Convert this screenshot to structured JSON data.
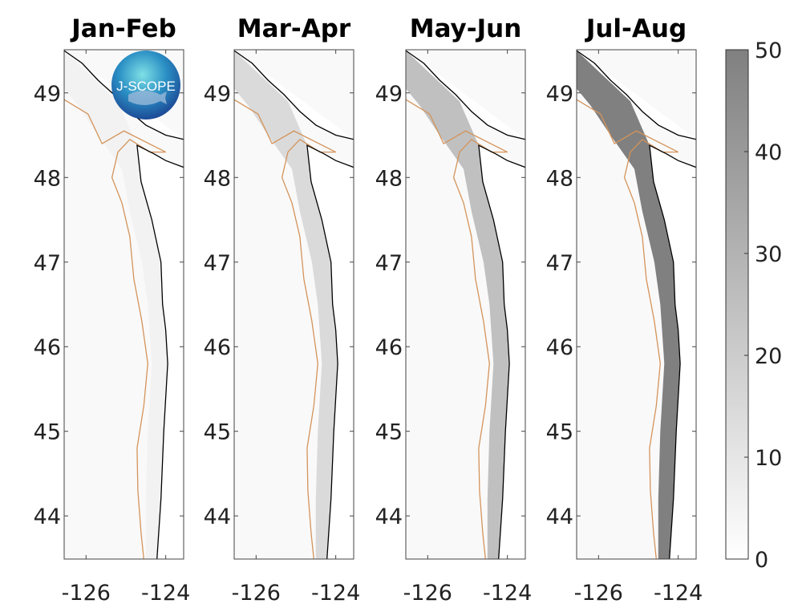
{
  "figure": {
    "panels": [
      {
        "title": "Jan-Feb",
        "intensity": 0.06
      },
      {
        "title": "Mar-Apr",
        "intensity": 0.25
      },
      {
        "title": "May-Jun",
        "intensity": 0.45
      },
      {
        "title": "Jul-Aug",
        "intensity": 0.95
      }
    ],
    "lat_ticks": [
      "49",
      "48",
      "47",
      "46",
      "45",
      "44"
    ],
    "lon_ticks": [
      "-126",
      "-124"
    ],
    "lon_range": [
      -126.55,
      -123.55
    ],
    "lat_range": [
      43.49,
      49.51
    ],
    "colorbar": {
      "ticks": [
        "0",
        "10",
        "20",
        "30",
        "40",
        "50"
      ],
      "range": [
        0,
        50
      ],
      "colormap": "white-to-gray",
      "max_color": "#808080"
    },
    "contour_color": "#d4935a",
    "coastline_color": "#000000",
    "logo": {
      "text": "J-SCOPE"
    }
  }
}
